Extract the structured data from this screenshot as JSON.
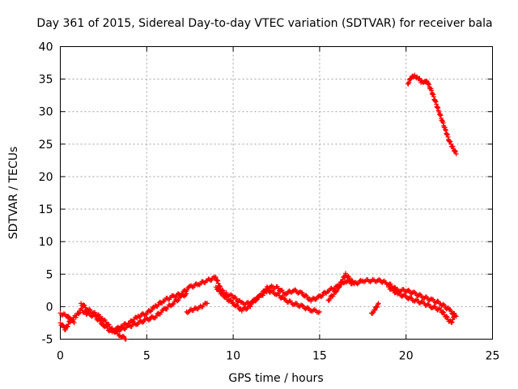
{
  "chart_data": {
    "type": "scatter",
    "title": "Day 361 of 2015, Sidereal Day-to-day VTEC variation (SDTVAR) for receiver bala",
    "xlabel": "GPS time / hours",
    "ylabel": "SDTVAR / TECUs",
    "xlim": [
      0,
      25
    ],
    "ylim": [
      -5,
      40
    ],
    "xticks": [
      0,
      5,
      10,
      15,
      20,
      25
    ],
    "yticks": [
      -5,
      0,
      5,
      10,
      15,
      20,
      25,
      30,
      35,
      40
    ],
    "grid": true,
    "legend": "none",
    "series": [
      {
        "name": "SDTVAR",
        "color": "#ff0000",
        "marker": "plus",
        "segments": [
          {
            "x": [
              0.0,
              0.3,
              0.6,
              0.9,
              1.2,
              1.5,
              2.0,
              2.5,
              3.0,
              3.5,
              4.0,
              4.5,
              5.0,
              5.5,
              6.0,
              6.5,
              7.0,
              7.5,
              8.0,
              8.5,
              9.0,
              9.3,
              9.6,
              10.0,
              10.5,
              11.0,
              11.5,
              12.0,
              12.5,
              13.0,
              13.5,
              14.0,
              14.5,
              15.0,
              15.5,
              16.0,
              16.5,
              17.0,
              17.5,
              18.0,
              18.5,
              19.0,
              19.5,
              20.0,
              20.5,
              21.0,
              21.5,
              22.0,
              22.5,
              22.9
            ],
            "y": [
              -2.5,
              -3.5,
              -2.0,
              -1.5,
              -0.5,
              -1.0,
              -1.5,
              -2.8,
              -4.0,
              -3.0,
              -2.5,
              -1.5,
              -1.0,
              0.0,
              1.0,
              1.5,
              2.0,
              3.0,
              3.5,
              4.0,
              4.5,
              2.5,
              2.0,
              1.5,
              0.5,
              0.5,
              1.5,
              3.0,
              3.0,
              2.0,
              2.5,
              2.0,
              1.0,
              1.5,
              2.5,
              3.0,
              4.0,
              3.5,
              4.0,
              4.0,
              4.0,
              3.5,
              2.5,
              2.5,
              2.0,
              1.5,
              1.0,
              0.5,
              -0.5,
              -1.5
            ]
          },
          {
            "x": [
              0.0,
              0.4,
              0.8
            ],
            "y": [
              -1.0,
              -1.5,
              -2.5
            ]
          },
          {
            "x": [
              1.2,
              1.6,
              2.0,
              2.5,
              3.0,
              3.5,
              3.8
            ],
            "y": [
              0.5,
              -0.5,
              -1.0,
              -2.0,
              -3.5,
              -4.5,
              -5.0
            ]
          },
          {
            "x": [
              3.0,
              3.5,
              4.0,
              4.5,
              5.0,
              5.5,
              6.0,
              6.5,
              7.0,
              7.3
            ],
            "y": [
              -3.5,
              -3.5,
              -3.0,
              -2.5,
              -2.0,
              -1.5,
              -0.5,
              0.5,
              1.5,
              2.0
            ]
          },
          {
            "x": [
              7.3,
              7.7,
              8.1,
              8.5
            ],
            "y": [
              -0.8,
              -0.5,
              0.0,
              0.5
            ]
          },
          {
            "x": [
              9.0,
              9.5,
              10.0,
              10.5,
              11.0
            ],
            "y": [
              3.0,
              1.5,
              0.5,
              -0.5,
              0.0
            ]
          },
          {
            "x": [
              11.0,
              11.5,
              12.0,
              12.5,
              13.0,
              13.5,
              14.0,
              14.5,
              15.0
            ],
            "y": [
              0.5,
              1.5,
              2.5,
              2.0,
              1.0,
              0.5,
              0.0,
              -0.5,
              -0.8
            ]
          },
          {
            "x": [
              15.5,
              16.0,
              16.5,
              17.0
            ],
            "y": [
              1.0,
              2.5,
              5.0,
              3.5
            ]
          },
          {
            "x": [
              18.0,
              18.2,
              18.4
            ],
            "y": [
              -1.0,
              -0.5,
              0.5
            ]
          },
          {
            "x": [
              19.0,
              19.5,
              20.0,
              20.5,
              21.0,
              21.5,
              22.0
            ],
            "y": [
              3.0,
              2.0,
              1.5,
              1.0,
              0.5,
              0.0,
              -0.5
            ]
          },
          {
            "x": [
              22.0,
              22.3,
              22.6,
              22.8
            ],
            "y": [
              -0.5,
              -1.5,
              -2.5,
              -1.5
            ]
          },
          {
            "x": [
              20.1,
              20.3,
              20.5,
              20.7,
              20.9,
              21.1,
              21.3,
              21.5,
              21.7,
              21.9,
              22.1,
              22.3,
              22.5,
              22.7,
              22.9
            ],
            "y": [
              34.3,
              35.2,
              35.5,
              35.2,
              34.5,
              34.8,
              34.2,
              33.0,
              31.5,
              30.0,
              28.5,
              27.0,
              25.5,
              24.5,
              23.5
            ]
          }
        ]
      }
    ]
  }
}
